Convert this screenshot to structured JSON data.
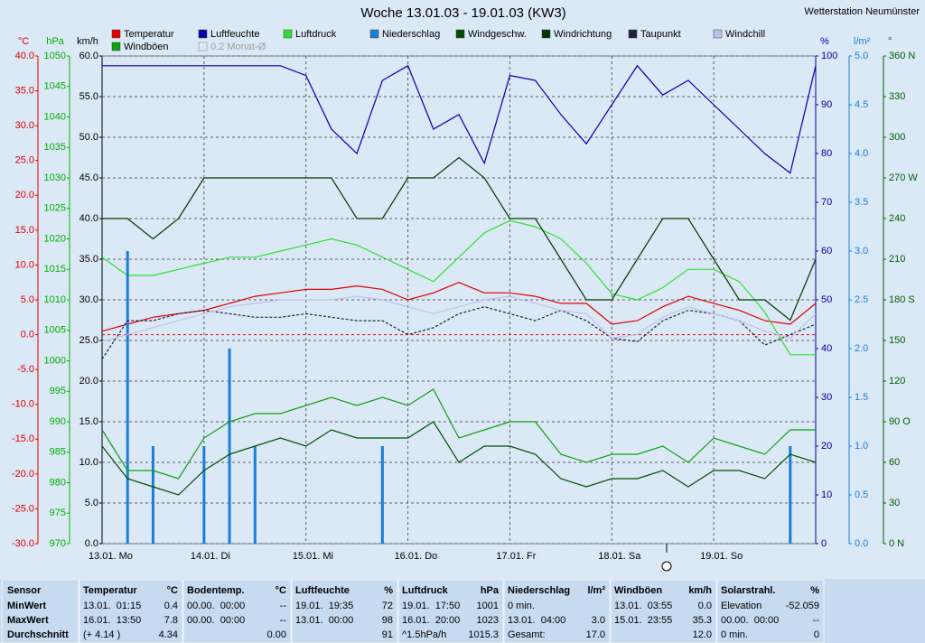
{
  "station": "Wetterstation Neumünster",
  "chart_data": {
    "type": "line",
    "title": "Woche 13.01.03 - 19.01.03 (KW3)",
    "categories": [
      "13.01. Mo",
      null,
      null,
      null,
      "14.01. Di",
      null,
      null,
      null,
      "15.01. Mi",
      null,
      null,
      null,
      "16.01. Do",
      null,
      null,
      null,
      "17.01. Fr",
      null,
      null,
      null,
      "18.01. Sa",
      null,
      null,
      null,
      "19.01. So",
      null,
      null,
      null,
      null
    ],
    "axes": [
      {
        "label": "°C",
        "side": "left",
        "color": "#e00000",
        "lim": [
          -30,
          40
        ],
        "grid": false,
        "ticks": [
          {
            "value": 40,
            "label": "40.0"
          },
          {
            "value": 35,
            "label": "35.0"
          },
          {
            "value": 30,
            "label": "30.0"
          },
          {
            "value": 25,
            "label": "25.0"
          },
          {
            "value": 20,
            "label": "20.0"
          },
          {
            "value": 15,
            "label": "15.0"
          },
          {
            "value": 10,
            "label": "10.0"
          },
          {
            "value": 5,
            "label": "5.0"
          },
          {
            "value": 0,
            "label": "0.0"
          },
          {
            "value": -5,
            "label": "-5.0"
          },
          {
            "value": -10,
            "label": "-10.0"
          },
          {
            "value": -15,
            "label": "-15.0"
          },
          {
            "value": -20,
            "label": "-20.0"
          },
          {
            "value": -25,
            "label": "-25.0"
          },
          {
            "value": -30,
            "label": "-30.0"
          }
        ]
      },
      {
        "label": "hPa",
        "side": "left",
        "color": "#00b000",
        "lim": [
          970,
          1050
        ],
        "grid": false,
        "ticks": [
          1050,
          1045,
          1040,
          1035,
          1030,
          1025,
          1020,
          1015,
          1010,
          1005,
          1000,
          995,
          990,
          985,
          980,
          975,
          970
        ]
      },
      {
        "label": "km/h",
        "side": "left",
        "color": "#000000",
        "lim": [
          0,
          60
        ],
        "grid": true,
        "ticks": [
          {
            "value": 60,
            "label": "60.0"
          },
          {
            "value": 55,
            "label": "55.0"
          },
          {
            "value": 50,
            "label": "50.0"
          },
          {
            "value": 45,
            "label": "45.0"
          },
          {
            "value": 40,
            "label": "40.0"
          },
          {
            "value": 35,
            "label": "35.0"
          },
          {
            "value": 30,
            "label": "30.0"
          },
          {
            "value": 25,
            "label": "25.0"
          },
          {
            "value": 20,
            "label": "20.0"
          },
          {
            "value": 15,
            "label": "15.0"
          },
          {
            "value": 10,
            "label": "10.0"
          },
          {
            "value": 5,
            "label": "5.0"
          },
          {
            "value": 0,
            "label": "0.0"
          }
        ]
      },
      {
        "label": "%",
        "side": "right",
        "color": "#0000a0",
        "lim": [
          0,
          100
        ],
        "grid": false,
        "ticks": [
          100,
          90,
          80,
          70,
          60,
          50,
          40,
          30,
          20,
          10,
          0
        ]
      },
      {
        "label": "l/m²",
        "side": "right",
        "color": "#1a7fd4",
        "lim": [
          0,
          5
        ],
        "grid": false,
        "ticks": [
          {
            "value": 5,
            "label": "5.0"
          },
          4.5,
          {
            "value": 4,
            "label": "4.0"
          },
          3.5,
          {
            "value": 3,
            "label": "3.0"
          },
          2.5,
          {
            "value": 2,
            "label": "2.0"
          },
          1.5,
          {
            "value": 1,
            "label": "1.0"
          },
          0.5,
          {
            "value": 0,
            "label": "0.0"
          }
        ]
      },
      {
        "label": "°",
        "side": "right",
        "color": "#006000",
        "lim": [
          0,
          360
        ],
        "grid": false,
        "ticks": [
          {
            "value": 360,
            "label": "360 N"
          },
          330,
          300,
          {
            "value": 270,
            "label": "270 W"
          },
          240,
          210,
          {
            "value": 180,
            "label": "180 S"
          },
          150,
          120,
          {
            "value": 90,
            "label": "90 O"
          },
          60,
          30,
          {
            "value": 0,
            "label": "0 N"
          }
        ]
      }
    ],
    "series": [
      {
        "name": "Temperatur",
        "color": "#e00000",
        "axis": 0,
        "values": [
          0.5,
          1.5,
          2.5,
          3.0,
          3.5,
          4.5,
          5.5,
          6.0,
          6.5,
          6.5,
          7.0,
          6.5,
          5.0,
          6.0,
          7.5,
          6.0,
          6.0,
          5.5,
          4.5,
          4.5,
          1.5,
          2.0,
          4.0,
          5.5,
          4.5,
          3.5,
          2.0,
          1.5,
          4.5
        ]
      },
      {
        "name": "Luftfeuchte",
        "color": "#0000b0",
        "axis": 3,
        "values": [
          98,
          98,
          98,
          98,
          98,
          98,
          98,
          98,
          96,
          85,
          80,
          95,
          98,
          85,
          88,
          78,
          96,
          95,
          88,
          82,
          90,
          98,
          92,
          95,
          90,
          85,
          80,
          76,
          98
        ]
      },
      {
        "name": "Luftdruck",
        "color": "#30e030",
        "axis": 1,
        "values": [
          1017,
          1014,
          1014,
          1015,
          1016,
          1017,
          1017,
          1018,
          1019,
          1020,
          1019,
          1017,
          1015,
          1013,
          1017,
          1021,
          1023,
          1022,
          1020,
          1016,
          1011,
          1010,
          1012,
          1015,
          1015,
          1013,
          1008,
          1001,
          1001
        ]
      },
      {
        "name": "Niederschlag",
        "color": "#1a7fd4",
        "axis": 4,
        "kind": "bar",
        "values": [
          0,
          3.0,
          1.0,
          0,
          1.0,
          2.0,
          1.0,
          0,
          0,
          0,
          0,
          1.0,
          0,
          0,
          0,
          0,
          0,
          0,
          0,
          0,
          0,
          0,
          0,
          0,
          0,
          0,
          0,
          1.0,
          0
        ]
      },
      {
        "name": "Windgeschw.",
        "color": "#005000",
        "axis": 2,
        "values": [
          12,
          8,
          7,
          6,
          9,
          11,
          12,
          13,
          12,
          14,
          13,
          13,
          13,
          15,
          10,
          12,
          12,
          11,
          8,
          7,
          8,
          8,
          9,
          7,
          9,
          9,
          8,
          11,
          10
        ]
      },
      {
        "name": "Windrichtung",
        "color": "#003800",
        "axis": 5,
        "values": [
          240,
          240,
          225,
          240,
          270,
          270,
          270,
          270,
          270,
          270,
          240,
          240,
          270,
          270,
          285,
          270,
          240,
          240,
          210,
          180,
          180,
          210,
          240,
          240,
          210,
          180,
          180,
          165,
          210
        ]
      },
      {
        "name": "Taupunkt",
        "color": "#202040",
        "axis": 0,
        "dashed": true,
        "values": [
          -3.5,
          2.0,
          2.0,
          3.0,
          3.5,
          3.0,
          2.5,
          2.5,
          3.0,
          2.5,
          2.0,
          2.0,
          0.0,
          1.0,
          3.0,
          4.0,
          3.0,
          2.0,
          3.5,
          2.0,
          -0.5,
          -1.0,
          2.0,
          3.5,
          3.0,
          2.0,
          -1.5,
          0.0,
          1.5
        ]
      },
      {
        "name": "Windchill",
        "color": "#c0c0ec",
        "axis": 0,
        "values": [
          -1,
          0,
          1,
          2,
          3,
          4,
          4.5,
          5,
          5,
          5,
          5.5,
          5,
          4,
          3,
          4,
          5,
          5.5,
          4.5,
          3.5,
          3,
          -0.5,
          0,
          2.5,
          4,
          3,
          2,
          0.5,
          -0.5,
          3
        ]
      },
      {
        "name": "Windböen",
        "color": "#10a010",
        "axis": 2,
        "values": [
          14,
          9,
          9,
          8,
          13,
          15,
          16,
          16,
          17,
          18,
          17,
          18,
          17,
          19,
          13,
          14,
          15,
          15,
          11,
          10,
          11,
          11,
          12,
          10,
          13,
          12,
          11,
          14,
          14
        ]
      }
    ],
    "legend_disabled": "0.2 Monat-Ø"
  },
  "table": {
    "row_labels": [
      "Sensor",
      "MinWert",
      "MaxWert",
      "Durchschnitt"
    ],
    "columns": [
      {
        "header": "Temperatur",
        "unit": "°C",
        "rows": [
          {
            "text": "13.01.  01:15",
            "value": "0.4"
          },
          {
            "text": "16.01.  13:50",
            "value": "7.8"
          },
          {
            "text": "(+ 4.14 )",
            "value": "4.34"
          }
        ]
      },
      {
        "header": "Bodentemp.",
        "unit": "°C",
        "rows": [
          {
            "text": "00.00.  00:00",
            "value": "--"
          },
          {
            "text": "00.00.  00:00",
            "value": "--"
          },
          {
            "value": "0.00"
          }
        ]
      },
      {
        "header": "Luftfeuchte",
        "unit": "%",
        "rows": [
          {
            "text": "19.01.  19:35",
            "value": "72"
          },
          {
            "text": "13.01.  00:00",
            "value": "98"
          },
          {
            "value": "91"
          }
        ]
      },
      {
        "header": "Luftdruck",
        "unit": "hPa",
        "rows": [
          {
            "text": "19.01.  17:50",
            "value": "1001"
          },
          {
            "text": "16.01.  20:00",
            "value": "1023"
          },
          {
            "text": "^1.5hPa/h",
            "value": "1015.3"
          }
        ]
      },
      {
        "header": "Niederschlag",
        "unit": "l/m²",
        "rows": [
          {
            "text": "0 min."
          },
          {
            "text": "13.01.  04:00",
            "value": "3.0"
          },
          {
            "text": "Gesamt:",
            "value": "17.0"
          }
        ]
      },
      {
        "header": "Windböen",
        "unit": "km/h",
        "rows": [
          {
            "text": "13.01.  03:55",
            "value": "0.0"
          },
          {
            "text": "15.01.  23:55",
            "value": "35.3"
          },
          {
            "value": "12.0"
          }
        ]
      },
      {
        "header": "Solarstrahl.",
        "unit": "%",
        "rows": [
          {
            "text": "Elevation",
            "value": "-52.059"
          },
          {
            "text": "00.00.  00:00",
            "value": "--"
          },
          {
            "text": "0 min.",
            "value": "0"
          }
        ]
      }
    ]
  }
}
